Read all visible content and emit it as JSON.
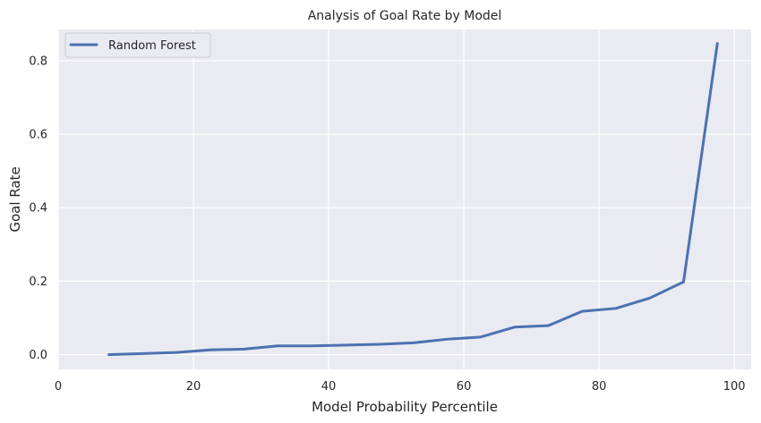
{
  "colors": {
    "plot_background": "#eaeaf2",
    "grid": "#ffffff",
    "series_line": "#4c72b0",
    "text": "#262626",
    "legend_background": "#eaeaf2",
    "legend_border": "#cccccc"
  },
  "chart_data": {
    "type": "line",
    "title": "Analysis of Goal Rate by Model",
    "xlabel": "Model Probability Percentile",
    "ylabel": "Goal Rate",
    "xlim": [
      0,
      102.5
    ],
    "ylim": [
      -0.04,
      0.885
    ],
    "xticks": [
      0,
      20,
      40,
      60,
      80,
      100
    ],
    "yticks": [
      0.0,
      0.2,
      0.4,
      0.6,
      0.8
    ],
    "xtick_labels": [
      "0",
      "20",
      "40",
      "60",
      "80",
      "100"
    ],
    "ytick_labels": [
      "0.0",
      "0.2",
      "0.4",
      "0.6",
      "0.8"
    ],
    "grid": true,
    "legend": {
      "placement": "top-left"
    },
    "series": [
      {
        "name": "Random Forest",
        "x": [
          7.5,
          12.5,
          17.5,
          22.5,
          27.5,
          32.5,
          37.5,
          42.5,
          47.5,
          52.5,
          57.5,
          62.5,
          67.5,
          72.5,
          77.5,
          82.5,
          87.5,
          92.5,
          97.5
        ],
        "values": [
          0.0,
          0.003,
          0.006,
          0.013,
          0.015,
          0.024,
          0.024,
          0.026,
          0.028,
          0.032,
          0.042,
          0.048,
          0.075,
          0.079,
          0.118,
          0.126,
          0.154,
          0.198,
          0.847
        ]
      }
    ]
  }
}
